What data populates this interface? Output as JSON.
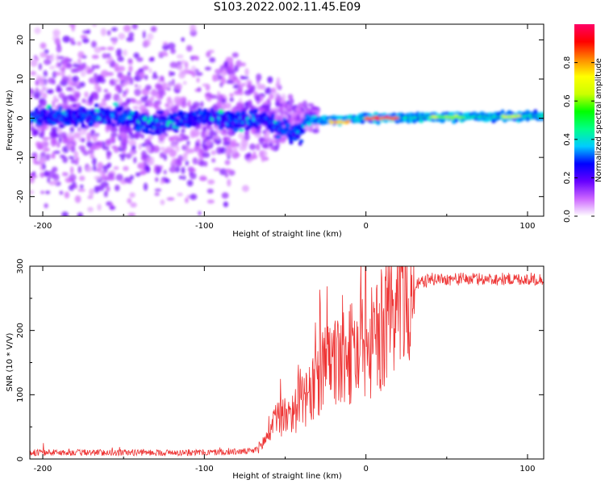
{
  "page": {
    "title": "S103.2022.002.11.45.E09"
  },
  "chart_data": [
    {
      "type": "heatmap",
      "title": "S103.2022.002.11.45.E09",
      "xlabel": "Height of straight line (km)",
      "ylabel": "Frequency (Hz)",
      "xlim": [
        -208,
        110
      ],
      "ylim": [
        -25,
        24
      ],
      "x_ticks": [
        -200,
        -100,
        0,
        100
      ],
      "y_ticks": [
        -20,
        -10,
        0,
        10,
        20
      ],
      "colorbar": {
        "label": "Normalized spectral amplitude",
        "range": [
          0,
          1
        ],
        "ticks": [
          0.0,
          0.2,
          0.4,
          0.6,
          0.8
        ],
        "tick_labels": [
          "0.0",
          "0.2",
          "0.4",
          "0.6",
          "0.8"
        ],
        "colors": [
          "#ffffff",
          "#cc66ff",
          "#6600ff",
          "#0000ff",
          "#00ccff",
          "#00ff88",
          "#00ff00",
          "#ccff00",
          "#ffff00",
          "#ff8800",
          "#ff0000",
          "#ff0066"
        ]
      },
      "band_center": [
        {
          "x": -205,
          "y": 0.5
        },
        {
          "x": -180,
          "y": 0.3
        },
        {
          "x": -150,
          "y": 0.5
        },
        {
          "x": -130,
          "y": -1.5
        },
        {
          "x": -100,
          "y": 0.5
        },
        {
          "x": -80,
          "y": -1
        },
        {
          "x": -65,
          "y": 0
        },
        {
          "x": -50,
          "y": -3
        },
        {
          "x": -40,
          "y": -4
        },
        {
          "x": -38,
          "y": -0.5
        },
        {
          "x": -20,
          "y": -0.5
        },
        {
          "x": 0,
          "y": 0
        },
        {
          "x": 50,
          "y": 0.3
        },
        {
          "x": 110,
          "y": 0.5
        }
      ],
      "peak_segments": [
        {
          "x_start": 0,
          "x_end": 20,
          "y": 0,
          "amplitude": 0.9
        },
        {
          "x_start": -22,
          "x_end": -10,
          "y": -1,
          "amplitude": 0.8
        },
        {
          "x_start": 40,
          "x_end": 60,
          "y": 0.3,
          "amplitude": 0.65
        },
        {
          "x_start": 85,
          "x_end": 95,
          "y": 0.5,
          "amplitude": 0.7
        }
      ]
    },
    {
      "type": "line",
      "xlabel": "Height of straight line (km)",
      "ylabel": "SNR (10 * V/V)",
      "xlim": [
        -208,
        110
      ],
      "ylim": [
        0,
        300
      ],
      "x_ticks": [
        -200,
        -100,
        0,
        100
      ],
      "y_ticks": [
        0,
        100,
        200,
        300
      ],
      "color": "#ee3333",
      "series": [
        {
          "x": [
            -208,
            -150,
            -100,
            -70,
            -65,
            -60,
            -55,
            -50,
            -45,
            -40,
            -35,
            -30,
            -25,
            -20,
            -15,
            -10,
            -5,
            0,
            5,
            10,
            15,
            20,
            25,
            30,
            35,
            40,
            50,
            60,
            70,
            80,
            90,
            100,
            110
          ],
          "values": [
            10,
            10,
            10,
            12,
            20,
            40,
            60,
            70,
            75,
            85,
            95,
            120,
            140,
            150,
            150,
            160,
            170,
            175,
            180,
            200,
            230,
            250,
            260,
            270,
            275,
            280,
            280,
            280,
            280,
            280,
            280,
            280,
            280
          ]
        }
      ]
    }
  ]
}
